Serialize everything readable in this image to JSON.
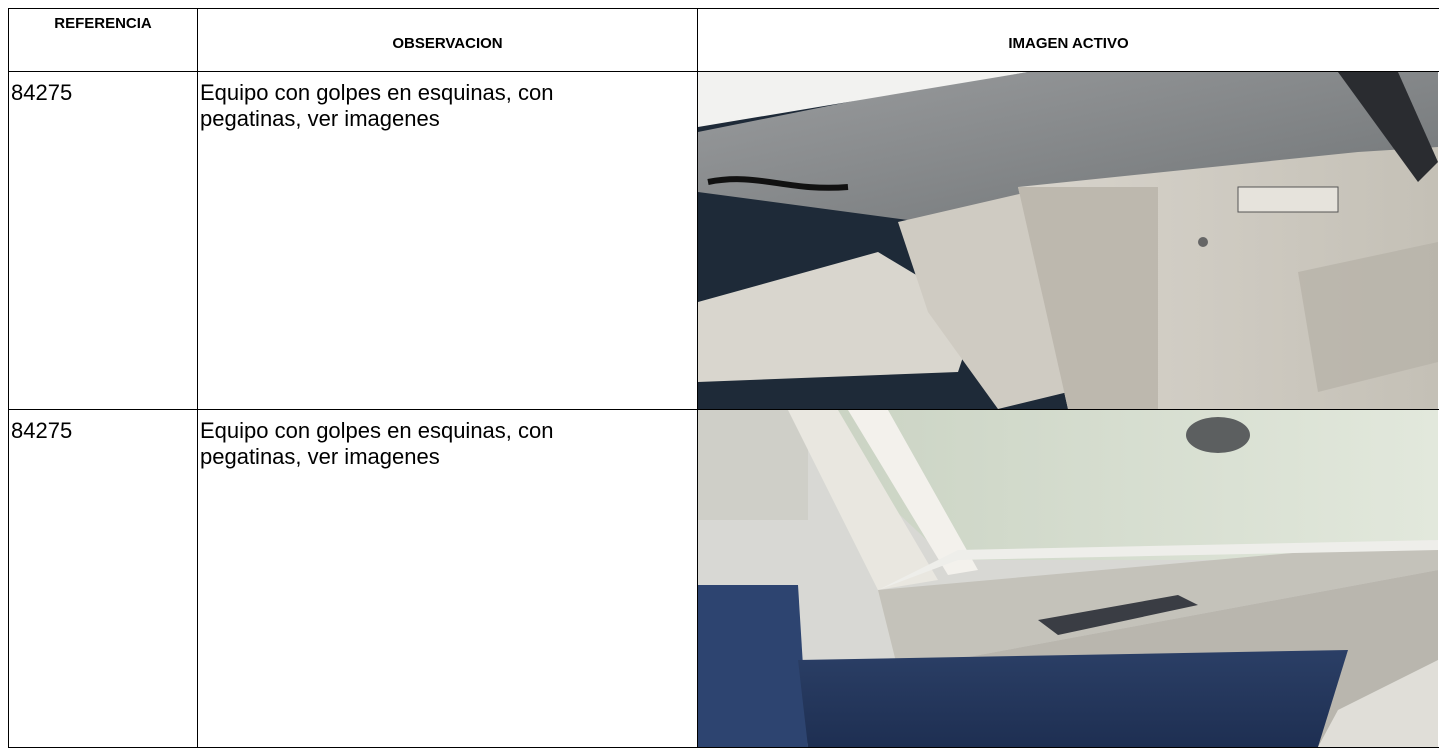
{
  "table": {
    "headers": [
      "REFERENCIA",
      "OBSERVACION",
      "IMAGEN ACTIVO"
    ],
    "rows": [
      [
        "84275",
        "Equipo con golpes en esquinas, con pegatinas, ver imagenes"
      ],
      [
        "84275",
        "Equipo con golpes en esquinas, con pegatinas, ver imagenes"
      ]
    ]
  }
}
